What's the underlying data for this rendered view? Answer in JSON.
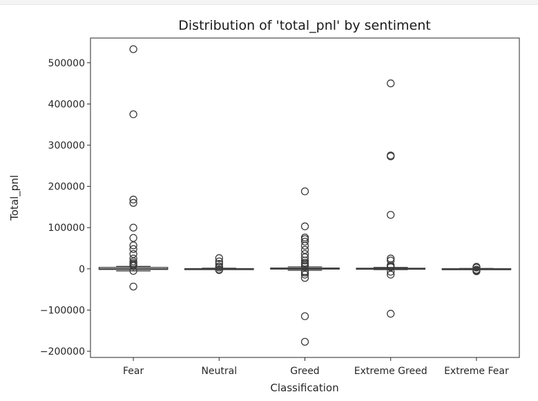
{
  "chart_data": {
    "type": "box",
    "title": "Distribution of 'total_pnl' by sentiment",
    "xlabel": "Classification",
    "ylabel": "Total_pnl",
    "ylim": [
      -215000,
      560000
    ],
    "yticks": [
      -200000,
      -100000,
      0,
      100000,
      200000,
      300000,
      400000,
      500000
    ],
    "ytick_labels": [
      "−200000",
      "−100000",
      "0",
      "100000",
      "200000",
      "300000",
      "400000",
      "500000"
    ],
    "categories": [
      "Fear",
      "Neutral",
      "Greed",
      "Extreme Greed",
      "Extreme Fear"
    ],
    "grid": false,
    "colors": {
      "box_fill": "#ffffff",
      "line": "#3c3c3c",
      "marker_edge": "#3c3c3c"
    },
    "boxes": [
      {
        "category": "Fear",
        "q1": -1500,
        "median": 0,
        "q3": 3500,
        "whisker_low": -5000,
        "whisker_high": 6000,
        "outliers": [
          533000,
          375000,
          168000,
          160000,
          100000,
          75000,
          57000,
          48000,
          36000,
          25000,
          18000,
          14000,
          11000,
          8000,
          7000,
          -5000,
          -43000
        ]
      },
      {
        "category": "Neutral",
        "q1": -300,
        "median": 0,
        "q3": 600,
        "whisker_low": -1000,
        "whisker_high": 1500,
        "outliers": [
          26000,
          18000,
          12000,
          6000,
          3000,
          -1500,
          -3000
        ]
      },
      {
        "category": "Greed",
        "q1": -700,
        "median": 0,
        "q3": 2000,
        "whisker_low": -3500,
        "whisker_high": 5000,
        "outliers": [
          188000,
          103000,
          76000,
          72000,
          66000,
          56000,
          46000,
          36000,
          28000,
          20000,
          15000,
          12000,
          9000,
          6000,
          -6000,
          -9000,
          -14000,
          -22000,
          -115000,
          -177000
        ]
      },
      {
        "category": "Extreme Greed",
        "q1": -400,
        "median": 0,
        "q3": 1500,
        "whisker_low": -2000,
        "whisker_high": 3500,
        "outliers": [
          450000,
          275000,
          273000,
          131000,
          25000,
          20000,
          9000,
          6000,
          4000,
          -7000,
          -14000,
          -109000
        ]
      },
      {
        "category": "Extreme Fear",
        "q1": -300,
        "median": 0,
        "q3": 400,
        "whisker_low": -800,
        "whisker_high": 900,
        "outliers": [
          5000,
          3000,
          -2000,
          -4000,
          -6000
        ]
      }
    ]
  }
}
